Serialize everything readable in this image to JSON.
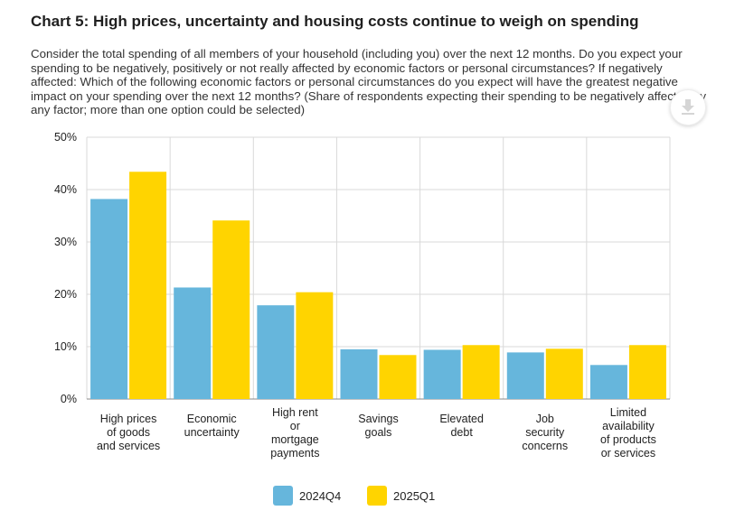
{
  "header": {
    "title": "Chart 5: High prices, uncertainty and housing costs continue to weigh on spending",
    "subtitle": "Consider the total spending of all members of your household (including you) over the next 12 months. Do you expect your spending to be negatively, positively or not really affected by economic factors or personal circumstances? If negatively affected: Which of the following economic factors or personal circumstances do you expect will have the greatest negative impact on your spending over the next 12 months? (Share of respondents expecting their spending to be negatively affected by any factor; more than one option could be selected)"
  },
  "toolbar": {
    "download_icon": "download-icon"
  },
  "chart_data": {
    "type": "bar",
    "categories": [
      [
        "High prices",
        "of goods",
        "and services"
      ],
      [
        "Economic",
        "uncertainty"
      ],
      [
        "High rent",
        "or",
        "mortgage",
        "payments"
      ],
      [
        "Savings",
        "goals"
      ],
      [
        "Elevated",
        "debt"
      ],
      [
        "Job",
        "security",
        "concerns"
      ],
      [
        "Limited",
        "availability",
        "of products",
        "or services"
      ]
    ],
    "series": [
      {
        "name": "2024Q4",
        "color": "#66b6dc",
        "values": [
          38.2,
          21.3,
          17.9,
          9.5,
          9.4,
          8.9,
          6.5
        ]
      },
      {
        "name": "2025Q1",
        "color": "#ffd400",
        "values": [
          43.4,
          34.1,
          20.4,
          8.4,
          10.3,
          9.6,
          10.3
        ]
      }
    ],
    "ylim": [
      0,
      50
    ],
    "yticks": [
      "0%",
      "10%",
      "20%",
      "30%",
      "40%",
      "50%"
    ],
    "grid": true,
    "legend_position": "bottom-center"
  }
}
